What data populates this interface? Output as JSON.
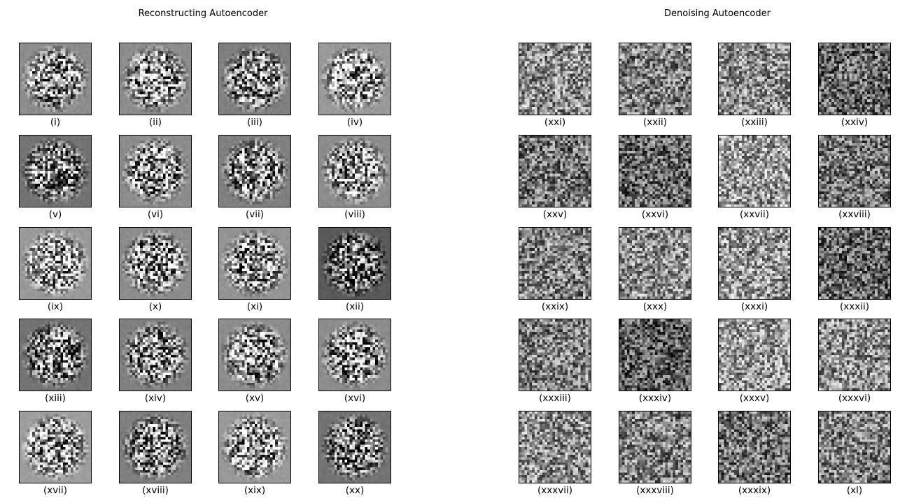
{
  "panels": [
    {
      "title": "Reconstructing Autoencoder",
      "captions": [
        "(i)",
        "(ii)",
        "(iii)",
        "(iv)",
        "(v)",
        "(vi)",
        "(vii)",
        "(viii)",
        "(ix)",
        "(x)",
        "(xi)",
        "(xii)",
        "(xiii)",
        "(xiv)",
        "(xv)",
        "(xvi)",
        "(xvii)",
        "(xviii)",
        "(xix)",
        "(xx)"
      ],
      "background_gray": [
        0.55,
        0.55,
        0.5,
        0.6,
        0.45,
        0.55,
        0.5,
        0.55,
        0.6,
        0.55,
        0.58,
        0.35,
        0.45,
        0.5,
        0.55,
        0.55,
        0.62,
        0.5,
        0.6,
        0.45
      ],
      "texture": "centered-blob"
    },
    {
      "title": "Denoising Autoencoder",
      "captions": [
        "(xxi)",
        "(xxii)",
        "(xxiii)",
        "(xxiv)",
        "(xxv)",
        "(xxvi)",
        "(xxvii)",
        "(xxviii)",
        "(xxix)",
        "(xxx)",
        "(xxxi)",
        "(xxxii)",
        "(xxxiii)",
        "(xxxiv)",
        "(xxxv)",
        "(xxxvi)",
        "(xxxvii)",
        "(xxxviii)",
        "(xxxix)",
        "(xl)"
      ],
      "background_gray": [
        0.55,
        0.5,
        0.55,
        0.4,
        0.45,
        0.4,
        0.6,
        0.45,
        0.5,
        0.55,
        0.58,
        0.4,
        0.5,
        0.35,
        0.6,
        0.55,
        0.55,
        0.5,
        0.45,
        0.5
      ],
      "texture": "full-noise"
    }
  ]
}
